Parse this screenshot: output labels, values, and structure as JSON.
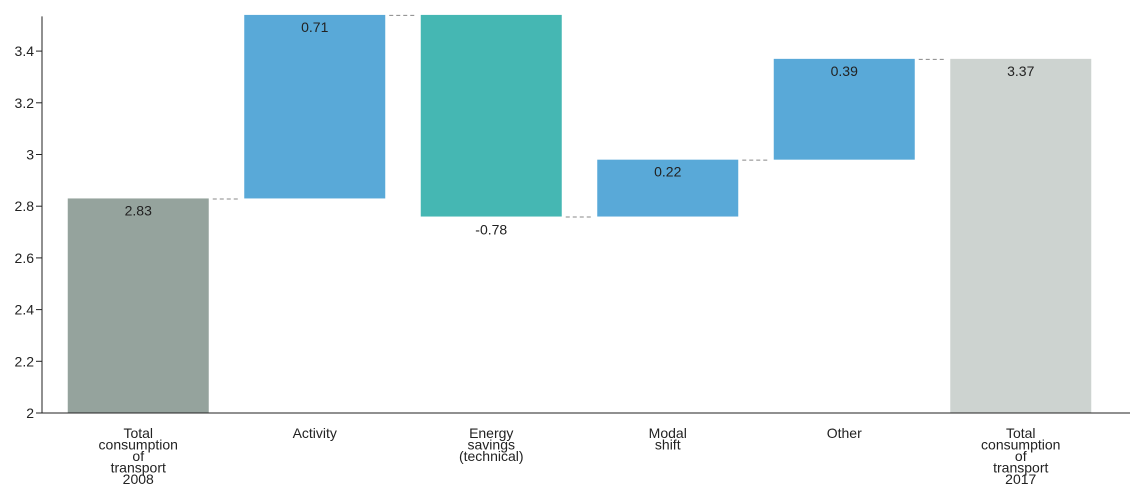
{
  "chart_data": {
    "type": "waterfall",
    "title": "",
    "xlabel": "",
    "ylabel": "",
    "ylim": [
      2,
      3.55
    ],
    "yticks": [
      2,
      2.2,
      2.4,
      2.6,
      2.8,
      3,
      3.2,
      3.4
    ],
    "ytick_labels": [
      "2",
      "2.2",
      "2.4",
      "2.6",
      "2.8",
      "3",
      "3.2",
      "3.4"
    ],
    "grid": false,
    "legend": "none",
    "categories": [
      [
        "Total",
        "consumption",
        "of",
        "transport",
        "2008"
      ],
      [
        "Activity"
      ],
      [
        "Energy",
        "savings",
        "(technical)"
      ],
      [
        "Modal",
        "shift"
      ],
      [
        "Other"
      ],
      [
        "Total",
        "consumption",
        "of",
        "transport",
        "2017"
      ]
    ],
    "bars": [
      {
        "kind": "total",
        "value": 2.83,
        "label": "2.83",
        "color": "#95a39d"
      },
      {
        "kind": "delta",
        "value": 0.71,
        "label": "0.71",
        "color": "#59a9d8"
      },
      {
        "kind": "delta",
        "value": -0.78,
        "label": "-0.78",
        "color": "#45b7b3"
      },
      {
        "kind": "delta",
        "value": 0.22,
        "label": "0.22",
        "color": "#59a9d8"
      },
      {
        "kind": "delta",
        "value": 0.39,
        "label": "0.39",
        "color": "#59a9d8"
      },
      {
        "kind": "total",
        "value": 3.37,
        "label": "3.37",
        "color": "#cdd3d0"
      }
    ],
    "colors": {
      "total_start": "#95a39d",
      "increase": "#59a9d8",
      "decrease": "#45b7b3",
      "total_end": "#cdd3d0",
      "connector": "#888888"
    }
  }
}
